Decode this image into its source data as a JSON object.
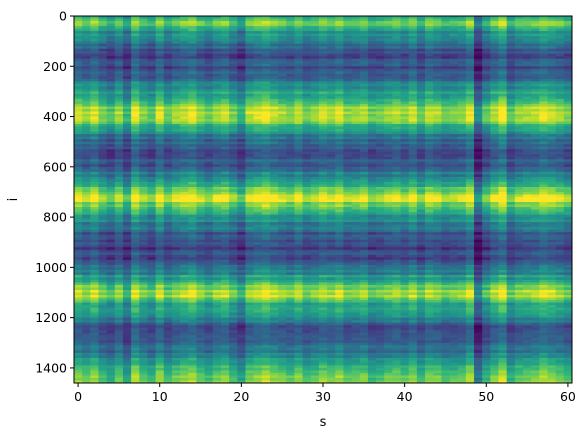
{
  "chart_data": {
    "type": "heatmap",
    "title": "",
    "xlabel": "s",
    "ylabel": "i",
    "xlim": [
      -0.5,
      60.5
    ],
    "ylim": [
      1460,
      0
    ],
    "y_inverted": true,
    "grid": false,
    "legend": "none",
    "colormap": "viridis",
    "x_ticks": [
      {
        "value": 0,
        "label": "0"
      },
      {
        "value": 10,
        "label": "10"
      },
      {
        "value": 20,
        "label": "20"
      },
      {
        "value": 30,
        "label": "30"
      },
      {
        "value": 40,
        "label": "40"
      },
      {
        "value": 50,
        "label": "50"
      },
      {
        "value": 60,
        "label": "60"
      }
    ],
    "y_ticks": [
      {
        "value": 0,
        "label": "0"
      },
      {
        "value": 200,
        "label": "200"
      },
      {
        "value": 400,
        "label": "400"
      },
      {
        "value": 600,
        "label": "600"
      },
      {
        "value": 800,
        "label": "800"
      },
      {
        "value": 1000,
        "label": "1000"
      },
      {
        "value": 1200,
        "label": "1200"
      },
      {
        "value": 1400,
        "label": "1400"
      }
    ],
    "columns": 61,
    "rows": 1460,
    "row_profile": [
      {
        "i": 0,
        "v": 0.45
      },
      {
        "i": 20,
        "v": 0.75
      },
      {
        "i": 40,
        "v": 0.6
      },
      {
        "i": 70,
        "v": 0.45
      },
      {
        "i": 120,
        "v": 0.3
      },
      {
        "i": 160,
        "v": 0.2
      },
      {
        "i": 200,
        "v": 0.22
      },
      {
        "i": 250,
        "v": 0.3
      },
      {
        "i": 300,
        "v": 0.5
      },
      {
        "i": 340,
        "v": 0.65
      },
      {
        "i": 380,
        "v": 0.78
      },
      {
        "i": 400,
        "v": 0.85
      },
      {
        "i": 420,
        "v": 0.7
      },
      {
        "i": 460,
        "v": 0.45
      },
      {
        "i": 520,
        "v": 0.25
      },
      {
        "i": 560,
        "v": 0.2
      },
      {
        "i": 600,
        "v": 0.3
      },
      {
        "i": 650,
        "v": 0.5
      },
      {
        "i": 700,
        "v": 0.72
      },
      {
        "i": 730,
        "v": 0.9
      },
      {
        "i": 760,
        "v": 0.7
      },
      {
        "i": 800,
        "v": 0.45
      },
      {
        "i": 860,
        "v": 0.3
      },
      {
        "i": 920,
        "v": 0.15
      },
      {
        "i": 980,
        "v": 0.22
      },
      {
        "i": 1040,
        "v": 0.5
      },
      {
        "i": 1080,
        "v": 0.72
      },
      {
        "i": 1110,
        "v": 0.82
      },
      {
        "i": 1140,
        "v": 0.62
      },
      {
        "i": 1200,
        "v": 0.38
      },
      {
        "i": 1260,
        "v": 0.2
      },
      {
        "i": 1300,
        "v": 0.25
      },
      {
        "i": 1350,
        "v": 0.42
      },
      {
        "i": 1400,
        "v": 0.6
      },
      {
        "i": 1440,
        "v": 0.78
      },
      {
        "i": 1460,
        "v": 0.72
      }
    ],
    "column_offsets": [
      0.1,
      0.04,
      0.12,
      0.0,
      -0.06,
      0.05,
      -0.1,
      0.14,
      0.02,
      -0.04,
      0.12,
      -0.02,
      0.06,
      0.1,
      0.14,
      0.04,
      -0.02,
      0.06,
      0.1,
      0.0,
      -0.1,
      0.08,
      0.12,
      0.16,
      0.1,
      0.06,
      0.02,
      0.1,
      0.0,
      0.04,
      0.1,
      0.06,
      0.12,
      0.02,
      0.04,
      0.08,
      -0.02,
      0.0,
      0.04,
      0.08,
      0.02,
      0.1,
      -0.02,
      0.1,
      0.06,
      0.0,
      0.02,
      0.04,
      0.14,
      -0.24,
      -0.04,
      0.08,
      0.18,
      -0.04,
      0.04,
      0.06,
      0.08,
      0.14,
      0.1,
      0.06,
      0.0
    ]
  }
}
